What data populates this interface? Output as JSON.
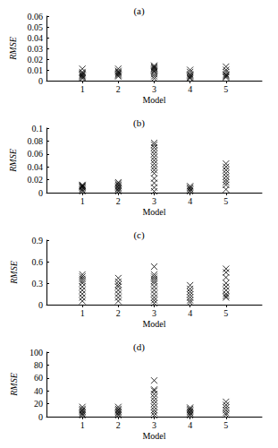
{
  "chart_data": [
    {
      "type": "scatter",
      "title": "(a)",
      "x_label": "Model",
      "y_label": "RMSE",
      "x": [
        1,
        1,
        1,
        1,
        1,
        1,
        1,
        1,
        2,
        2,
        2,
        2,
        2,
        2,
        2,
        3,
        3,
        3,
        3,
        3,
        3,
        3,
        3,
        3,
        3,
        4,
        4,
        4,
        4,
        4,
        4,
        4,
        5,
        5,
        5,
        5,
        5,
        5,
        5
      ],
      "values": [
        0.002,
        0.003,
        0.004,
        0.005,
        0.006,
        0.007,
        0.008,
        0.011,
        0.004,
        0.005,
        0.006,
        0.007,
        0.008,
        0.009,
        0.011,
        0.002,
        0.004,
        0.006,
        0.008,
        0.009,
        0.01,
        0.011,
        0.012,
        0.013,
        0.014,
        0.002,
        0.003,
        0.004,
        0.005,
        0.006,
        0.008,
        0.01,
        0.003,
        0.004,
        0.005,
        0.006,
        0.008,
        0.01,
        0.013
      ],
      "xlim": [
        0,
        6
      ],
      "xticks": [
        1,
        2,
        3,
        4,
        5
      ],
      "ylim": [
        0,
        0.06
      ],
      "yticks": [
        0,
        0.01,
        0.02,
        0.03,
        0.04,
        0.05,
        0.06
      ],
      "marker": "x",
      "color": "#000000"
    },
    {
      "type": "scatter",
      "title": "(b)",
      "x_label": "Model",
      "y_label": "RMSE",
      "x": [
        1,
        1,
        1,
        1,
        1,
        1,
        1,
        1,
        2,
        2,
        2,
        2,
        2,
        2,
        2,
        2,
        3,
        3,
        3,
        3,
        3,
        3,
        3,
        3,
        3,
        3,
        3,
        3,
        3,
        3,
        3,
        4,
        4,
        4,
        4,
        4,
        5,
        5,
        5,
        5,
        5,
        5,
        5,
        5,
        5
      ],
      "values": [
        0.002,
        0.004,
        0.006,
        0.008,
        0.009,
        0.01,
        0.011,
        0.012,
        0.002,
        0.004,
        0.006,
        0.008,
        0.01,
        0.012,
        0.014,
        0.016,
        0.002,
        0.008,
        0.015,
        0.022,
        0.03,
        0.035,
        0.04,
        0.045,
        0.05,
        0.055,
        0.06,
        0.065,
        0.07,
        0.074,
        0.077,
        0.002,
        0.004,
        0.006,
        0.008,
        0.01,
        0.005,
        0.012,
        0.016,
        0.02,
        0.025,
        0.03,
        0.035,
        0.04,
        0.045
      ],
      "xlim": [
        0,
        6
      ],
      "xticks": [
        1,
        2,
        3,
        4,
        5
      ],
      "ylim": [
        0,
        0.1
      ],
      "yticks": [
        0,
        0.02,
        0.04,
        0.06,
        0.08,
        0.1
      ],
      "marker": "x",
      "color": "#000000"
    },
    {
      "type": "scatter",
      "title": "(c)",
      "x_label": "Model",
      "y_label": "RMSE",
      "x": [
        1,
        1,
        1,
        1,
        1,
        1,
        1,
        1,
        1,
        1,
        2,
        2,
        2,
        2,
        2,
        2,
        2,
        2,
        3,
        3,
        3,
        3,
        3,
        3,
        3,
        3,
        3,
        3,
        3,
        3,
        4,
        4,
        4,
        4,
        4,
        4,
        4,
        5,
        5,
        5,
        5,
        5,
        5,
        5,
        5,
        5
      ],
      "values": [
        0.05,
        0.1,
        0.15,
        0.2,
        0.25,
        0.3,
        0.33,
        0.36,
        0.39,
        0.42,
        0.05,
        0.1,
        0.15,
        0.2,
        0.25,
        0.28,
        0.32,
        0.37,
        0.02,
        0.06,
        0.1,
        0.15,
        0.2,
        0.25,
        0.3,
        0.33,
        0.36,
        0.39,
        0.42,
        0.53,
        0.03,
        0.06,
        0.1,
        0.14,
        0.18,
        0.22,
        0.27,
        0.1,
        0.12,
        0.15,
        0.2,
        0.25,
        0.3,
        0.38,
        0.45,
        0.5
      ],
      "xlim": [
        0,
        6
      ],
      "xticks": [
        1,
        2,
        3,
        4,
        5
      ],
      "ylim": [
        0,
        0.9
      ],
      "yticks": [
        0,
        0.3,
        0.6,
        0.9
      ],
      "marker": "x",
      "color": "#000000"
    },
    {
      "type": "scatter",
      "title": "(d)",
      "x_label": "Model",
      "y_label": "RMSE",
      "x": [
        1,
        1,
        1,
        1,
        1,
        1,
        1,
        2,
        2,
        2,
        2,
        2,
        2,
        2,
        3,
        3,
        3,
        3,
        3,
        3,
        3,
        3,
        3,
        3,
        3,
        4,
        4,
        4,
        4,
        4,
        4,
        4,
        5,
        5,
        5,
        5,
        5,
        5
      ],
      "values": [
        2,
        4,
        6,
        8,
        10,
        12,
        15,
        2,
        4,
        6,
        8,
        10,
        12,
        15,
        2,
        6,
        10,
        15,
        20,
        25,
        30,
        35,
        40,
        42,
        56,
        2,
        4,
        6,
        8,
        10,
        12,
        14,
        3,
        6,
        10,
        14,
        18,
        23
      ],
      "xlim": [
        0,
        6
      ],
      "xticks": [
        1,
        2,
        3,
        4,
        5
      ],
      "ylim": [
        0,
        100
      ],
      "yticks": [
        0,
        20,
        40,
        60,
        80,
        100
      ],
      "marker": "x",
      "color": "#000000"
    }
  ]
}
